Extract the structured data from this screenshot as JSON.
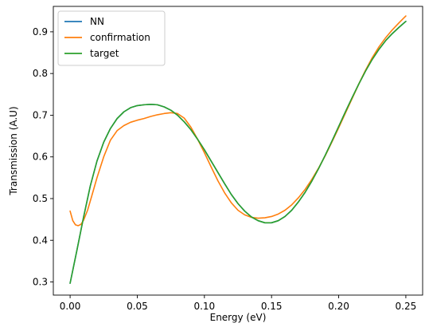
{
  "chart_data": {
    "type": "line",
    "title": "",
    "xlabel": "Energy (eV)",
    "ylabel": "Transmission (A.U)",
    "xlim": [
      -0.0125,
      0.2625
    ],
    "ylim": [
      0.2685,
      0.961
    ],
    "xticks": [
      0.0,
      0.05,
      0.1,
      0.15,
      0.2,
      0.25
    ],
    "xtick_labels": [
      "0.00",
      "0.05",
      "0.10",
      "0.15",
      "0.20",
      "0.25"
    ],
    "yticks": [
      0.3,
      0.4,
      0.5,
      0.6,
      0.7,
      0.8,
      0.9
    ],
    "ytick_labels": [
      "0.3",
      "0.4",
      "0.5",
      "0.6",
      "0.7",
      "0.8",
      "0.9"
    ],
    "grid": false,
    "legend_placement": "upper-left",
    "series": [
      {
        "name": "NN",
        "color": "#1f77b4",
        "x": [
          0.0,
          0.005,
          0.01,
          0.015,
          0.02,
          0.025,
          0.03,
          0.035,
          0.04,
          0.045,
          0.05,
          0.055,
          0.06,
          0.065,
          0.07,
          0.075,
          0.08,
          0.085,
          0.09,
          0.095,
          0.1,
          0.105,
          0.11,
          0.115,
          0.12,
          0.125,
          0.13,
          0.135,
          0.14,
          0.145,
          0.15,
          0.155,
          0.16,
          0.165,
          0.17,
          0.175,
          0.18,
          0.185,
          0.19,
          0.195,
          0.2,
          0.205,
          0.21,
          0.215,
          0.22,
          0.225,
          0.23,
          0.235,
          0.24,
          0.245,
          0.25
        ],
        "y": [
          0.297,
          0.375,
          0.455,
          0.53,
          0.59,
          0.635,
          0.668,
          0.692,
          0.708,
          0.718,
          0.723,
          0.725,
          0.726,
          0.725,
          0.72,
          0.712,
          0.7,
          0.684,
          0.665,
          0.642,
          0.617,
          0.59,
          0.563,
          0.536,
          0.51,
          0.488,
          0.47,
          0.456,
          0.447,
          0.442,
          0.442,
          0.447,
          0.457,
          0.472,
          0.492,
          0.515,
          0.542,
          0.572,
          0.604,
          0.638,
          0.673,
          0.708,
          0.742,
          0.775,
          0.806,
          0.834,
          0.858,
          0.879,
          0.896,
          0.911,
          0.925
        ]
      },
      {
        "name": "confirmation",
        "color": "#ff7f0e",
        "x": [
          0.0,
          0.002,
          0.004,
          0.006,
          0.008,
          0.01,
          0.013,
          0.016,
          0.02,
          0.025,
          0.03,
          0.035,
          0.04,
          0.045,
          0.05,
          0.055,
          0.06,
          0.065,
          0.07,
          0.075,
          0.08,
          0.085,
          0.09,
          0.095,
          0.1,
          0.105,
          0.11,
          0.115,
          0.12,
          0.125,
          0.13,
          0.135,
          0.14,
          0.145,
          0.15,
          0.155,
          0.16,
          0.165,
          0.17,
          0.175,
          0.18,
          0.185,
          0.19,
          0.195,
          0.2,
          0.205,
          0.21,
          0.215,
          0.22,
          0.225,
          0.23,
          0.235,
          0.24,
          0.245,
          0.25
        ],
        "y": [
          0.47,
          0.447,
          0.437,
          0.435,
          0.438,
          0.448,
          0.472,
          0.505,
          0.55,
          0.6,
          0.64,
          0.663,
          0.675,
          0.683,
          0.688,
          0.692,
          0.697,
          0.701,
          0.704,
          0.706,
          0.704,
          0.693,
          0.671,
          0.642,
          0.61,
          0.576,
          0.543,
          0.514,
          0.49,
          0.472,
          0.461,
          0.455,
          0.453,
          0.454,
          0.457,
          0.463,
          0.472,
          0.485,
          0.502,
          0.522,
          0.546,
          0.573,
          0.603,
          0.636,
          0.67,
          0.705,
          0.74,
          0.775,
          0.808,
          0.838,
          0.864,
          0.886,
          0.905,
          0.922,
          0.938
        ]
      },
      {
        "name": "target",
        "color": "#2ca02c",
        "x": [
          0.0,
          0.005,
          0.01,
          0.015,
          0.02,
          0.025,
          0.03,
          0.035,
          0.04,
          0.045,
          0.05,
          0.055,
          0.06,
          0.065,
          0.07,
          0.075,
          0.08,
          0.085,
          0.09,
          0.095,
          0.1,
          0.105,
          0.11,
          0.115,
          0.12,
          0.125,
          0.13,
          0.135,
          0.14,
          0.145,
          0.15,
          0.155,
          0.16,
          0.165,
          0.17,
          0.175,
          0.18,
          0.185,
          0.19,
          0.195,
          0.2,
          0.205,
          0.21,
          0.215,
          0.22,
          0.225,
          0.23,
          0.235,
          0.24,
          0.245,
          0.25
        ],
        "y": [
          0.297,
          0.375,
          0.455,
          0.53,
          0.59,
          0.635,
          0.668,
          0.692,
          0.708,
          0.718,
          0.723,
          0.725,
          0.726,
          0.725,
          0.72,
          0.712,
          0.7,
          0.684,
          0.665,
          0.642,
          0.617,
          0.59,
          0.563,
          0.536,
          0.51,
          0.488,
          0.47,
          0.456,
          0.447,
          0.442,
          0.442,
          0.447,
          0.457,
          0.472,
          0.492,
          0.515,
          0.542,
          0.572,
          0.604,
          0.638,
          0.673,
          0.708,
          0.742,
          0.775,
          0.806,
          0.834,
          0.858,
          0.879,
          0.896,
          0.911,
          0.925
        ]
      }
    ]
  }
}
